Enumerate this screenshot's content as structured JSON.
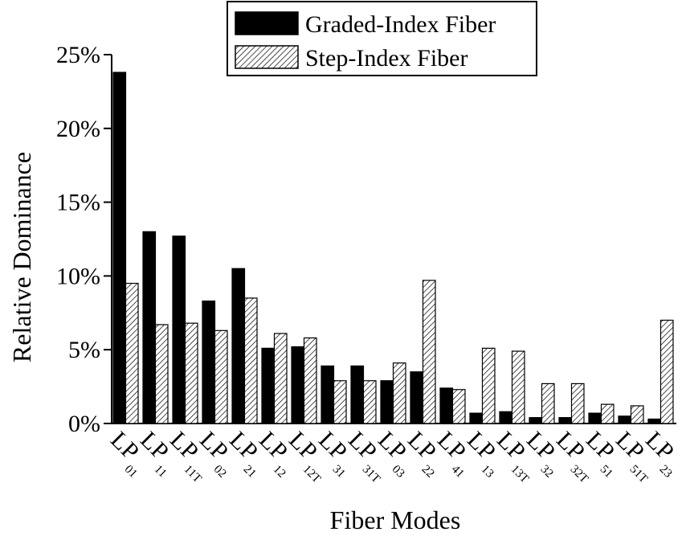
{
  "chart_data": {
    "type": "bar",
    "title": "",
    "xlabel": "Fiber Modes",
    "ylabel": "Relative Dominance",
    "ylim": [
      0,
      25
    ],
    "yticks": [
      "0%",
      "5%",
      "10%",
      "15%",
      "20%",
      "25%"
    ],
    "grid": false,
    "legend_position": "top-center",
    "categories": [
      {
        "main": "LP",
        "sub": "01"
      },
      {
        "main": "LP",
        "sub": "11"
      },
      {
        "main": "LP",
        "sub": "11T"
      },
      {
        "main": "LP",
        "sub": "02"
      },
      {
        "main": "LP",
        "sub": "21"
      },
      {
        "main": "LP",
        "sub": "12"
      },
      {
        "main": "LP",
        "sub": "12T"
      },
      {
        "main": "LP",
        "sub": "31"
      },
      {
        "main": "LP",
        "sub": "31T"
      },
      {
        "main": "LP",
        "sub": "03"
      },
      {
        "main": "LP",
        "sub": "22"
      },
      {
        "main": "LP",
        "sub": "41"
      },
      {
        "main": "LP",
        "sub": "13"
      },
      {
        "main": "LP",
        "sub": "13T"
      },
      {
        "main": "LP",
        "sub": "32"
      },
      {
        "main": "LP",
        "sub": "32T"
      },
      {
        "main": "LP",
        "sub": "51"
      },
      {
        "main": "LP",
        "sub": "51T"
      },
      {
        "main": "LP",
        "sub": "23"
      }
    ],
    "series": [
      {
        "name": "Graded-Index Fiber",
        "style": "solid",
        "color": "#000000",
        "values": [
          23.8,
          13.0,
          12.7,
          8.3,
          10.5,
          5.1,
          5.2,
          3.9,
          3.9,
          2.9,
          3.5,
          2.4,
          0.7,
          0.8,
          0.4,
          0.4,
          0.7,
          0.5,
          0.3
        ]
      },
      {
        "name": "Step-Index Fiber",
        "style": "hatched",
        "color": "#000000",
        "values": [
          9.5,
          6.7,
          6.8,
          6.3,
          8.5,
          6.1,
          5.8,
          2.9,
          2.9,
          4.1,
          9.7,
          2.3,
          5.1,
          4.9,
          2.7,
          2.7,
          1.3,
          1.2,
          7.0
        ]
      }
    ]
  }
}
